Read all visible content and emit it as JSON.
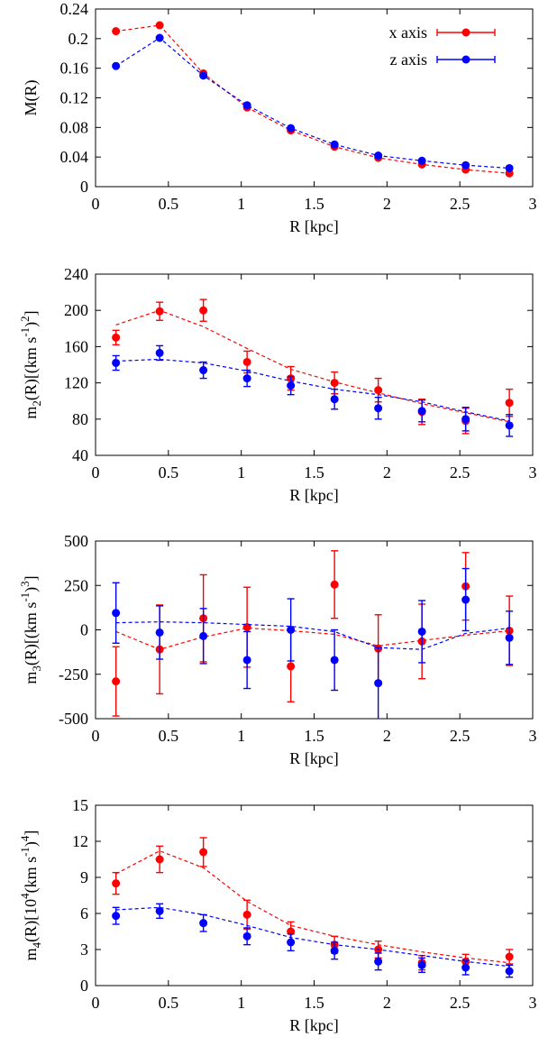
{
  "colors": {
    "x_axis": "#ff0000",
    "z_axis": "#0000ff",
    "axes": "#000000"
  },
  "legend": {
    "x_label": "x axis",
    "z_label": "z axis",
    "placement": "top-right"
  },
  "chart_data": [
    {
      "type": "scatter",
      "xlabel": "R [kpc]",
      "ylabel": "M(R)",
      "xlim": [
        0,
        3
      ],
      "ylim": [
        0,
        0.24
      ],
      "xticks": [
        "0",
        "0.5",
        "1",
        "1.5",
        "2",
        "2.5",
        "3"
      ],
      "yticks": [
        "0",
        "0.04",
        "0.08",
        "0.12",
        "0.16",
        "0.2",
        "0.24"
      ],
      "ytick_values": [
        0,
        0.04,
        0.08,
        0.12,
        0.16,
        0.2,
        0.24
      ],
      "x": [
        0.14,
        0.44,
        0.74,
        1.04,
        1.34,
        1.64,
        1.94,
        2.24,
        2.54,
        2.84
      ],
      "series": [
        {
          "name": "x axis",
          "values": [
            0.21,
            0.218,
            0.153,
            0.107,
            0.076,
            0.054,
            0.039,
            0.03,
            0.023,
            0.018
          ],
          "errors": [
            0,
            0,
            0,
            0,
            0,
            0,
            0,
            0,
            0,
            0
          ],
          "fit": [
            0.21,
            0.218,
            0.153,
            0.107,
            0.076,
            0.054,
            0.039,
            0.03,
            0.023,
            0.018
          ]
        },
        {
          "name": "z axis",
          "values": [
            0.163,
            0.201,
            0.15,
            0.11,
            0.079,
            0.057,
            0.042,
            0.035,
            0.029,
            0.025
          ],
          "errors": [
            0,
            0,
            0,
            0,
            0,
            0,
            0,
            0,
            0,
            0
          ],
          "fit": [
            0.163,
            0.201,
            0.15,
            0.11,
            0.079,
            0.057,
            0.042,
            0.035,
            0.029,
            0.025
          ]
        }
      ]
    },
    {
      "type": "scatter",
      "xlabel": "R [kpc]",
      "ylabel_main": "m",
      "ylabel_sub": "2",
      "ylabel_rest": "(R)[(km s",
      "ylabel_sup1": "-1",
      "ylabel_close": ")",
      "ylabel_sup2": "2",
      "ylabel_end": "]",
      "xlim": [
        0,
        3
      ],
      "ylim": [
        40,
        240
      ],
      "xticks": [
        "0",
        "0.5",
        "1",
        "1.5",
        "2",
        "2.5",
        "3"
      ],
      "yticks": [
        "40",
        "80",
        "120",
        "160",
        "200",
        "240"
      ],
      "ytick_values": [
        40,
        80,
        120,
        160,
        200,
        240
      ],
      "x": [
        0.14,
        0.44,
        0.74,
        1.04,
        1.34,
        1.64,
        1.94,
        2.24,
        2.54,
        2.84
      ],
      "series": [
        {
          "name": "x axis",
          "values": [
            170,
            199,
            200,
            143,
            125,
            120,
            112,
            88,
            78,
            98
          ],
          "errors": [
            8,
            10,
            12,
            12,
            13,
            12,
            13,
            14,
            14,
            15
          ],
          "fit": [
            184,
            200,
            182,
            158,
            135,
            121,
            109,
            97,
            87,
            77
          ]
        },
        {
          "name": "z axis",
          "values": [
            142,
            153,
            134,
            125,
            117,
            102,
            92,
            89,
            80,
            73
          ],
          "errors": [
            8,
            8,
            9,
            9,
            10,
            11,
            12,
            12,
            13,
            12
          ],
          "fit": [
            144,
            146,
            142,
            133,
            122,
            113,
            107,
            99,
            88,
            78
          ]
        }
      ]
    },
    {
      "type": "scatter",
      "xlabel": "R [kpc]",
      "ylabel_main": "m",
      "ylabel_sub": "3",
      "ylabel_rest": "(R)[(km s",
      "ylabel_sup1": "-1",
      "ylabel_close": ")",
      "ylabel_sup2": "3",
      "ylabel_end": "]",
      "xlim": [
        0,
        3
      ],
      "ylim": [
        -500,
        500
      ],
      "xticks": [
        "0",
        "0.5",
        "1",
        "1.5",
        "2",
        "2.5",
        "3"
      ],
      "yticks": [
        "-500",
        "-250",
        "0",
        "250",
        "500"
      ],
      "ytick_values": [
        -500,
        -250,
        0,
        250,
        500
      ],
      "x": [
        0.14,
        0.44,
        0.74,
        1.04,
        1.34,
        1.64,
        1.94,
        2.24,
        2.54,
        2.84
      ],
      "series": [
        {
          "name": "x axis",
          "values": [
            -290,
            -110,
            65,
            15,
            -205,
            255,
            -105,
            -65,
            245,
            -5
          ],
          "errors": [
            195,
            250,
            245,
            225,
            200,
            190,
            190,
            210,
            190,
            195
          ],
          "fit": [
            -10,
            -110,
            -40,
            10,
            -5,
            -25,
            -90,
            -60,
            -30,
            -5
          ]
        },
        {
          "name": "z axis",
          "values": [
            95,
            -15,
            -35,
            -170,
            0,
            -170,
            -300,
            -10,
            170,
            -45
          ],
          "errors": [
            170,
            150,
            155,
            160,
            175,
            170,
            200,
            175,
            175,
            150
          ],
          "fit": [
            40,
            45,
            40,
            30,
            20,
            -10,
            -100,
            -110,
            -20,
            10
          ]
        }
      ]
    },
    {
      "type": "scatter",
      "xlabel": "R [kpc]",
      "ylabel_main": "m",
      "ylabel_sub": "4",
      "ylabel_rest": "(R)[10",
      "ylabel_sup1": "4",
      "ylabel_close": "(km s",
      "ylabel_sup2": "-1",
      "ylabel_end": ")",
      "ylabel_sup3": "4",
      "ylabel_final": "]",
      "xlim": [
        0,
        3
      ],
      "ylim": [
        0,
        15
      ],
      "xticks": [
        "0",
        "0.5",
        "1",
        "1.5",
        "2",
        "2.5",
        "3"
      ],
      "yticks": [
        "0",
        "3",
        "6",
        "9",
        "12",
        "15"
      ],
      "ytick_values": [
        0,
        3,
        6,
        9,
        12,
        15
      ],
      "x": [
        0.14,
        0.44,
        0.74,
        1.04,
        1.34,
        1.64,
        1.94,
        2.24,
        2.54,
        2.84
      ],
      "series": [
        {
          "name": "x axis",
          "values": [
            8.5,
            10.5,
            11.1,
            5.9,
            4.5,
            3.4,
            3.0,
            1.9,
            2.0,
            2.4
          ],
          "errors": [
            0.9,
            1.1,
            1.2,
            1.2,
            0.8,
            0.7,
            0.7,
            0.6,
            0.6,
            0.6
          ],
          "fit": [
            9.3,
            11.2,
            9.8,
            7.0,
            5.0,
            4.1,
            3.4,
            2.8,
            2.3,
            1.9
          ]
        },
        {
          "name": "z axis",
          "values": [
            5.8,
            6.2,
            5.2,
            4.1,
            3.6,
            2.9,
            2.0,
            1.7,
            1.5,
            1.2
          ],
          "errors": [
            0.7,
            0.6,
            0.7,
            0.7,
            0.7,
            0.7,
            0.7,
            0.6,
            0.6,
            0.5
          ],
          "fit": [
            6.3,
            6.5,
            5.9,
            5.0,
            4.0,
            3.4,
            3.0,
            2.5,
            2.0,
            1.6
          ]
        }
      ]
    }
  ]
}
